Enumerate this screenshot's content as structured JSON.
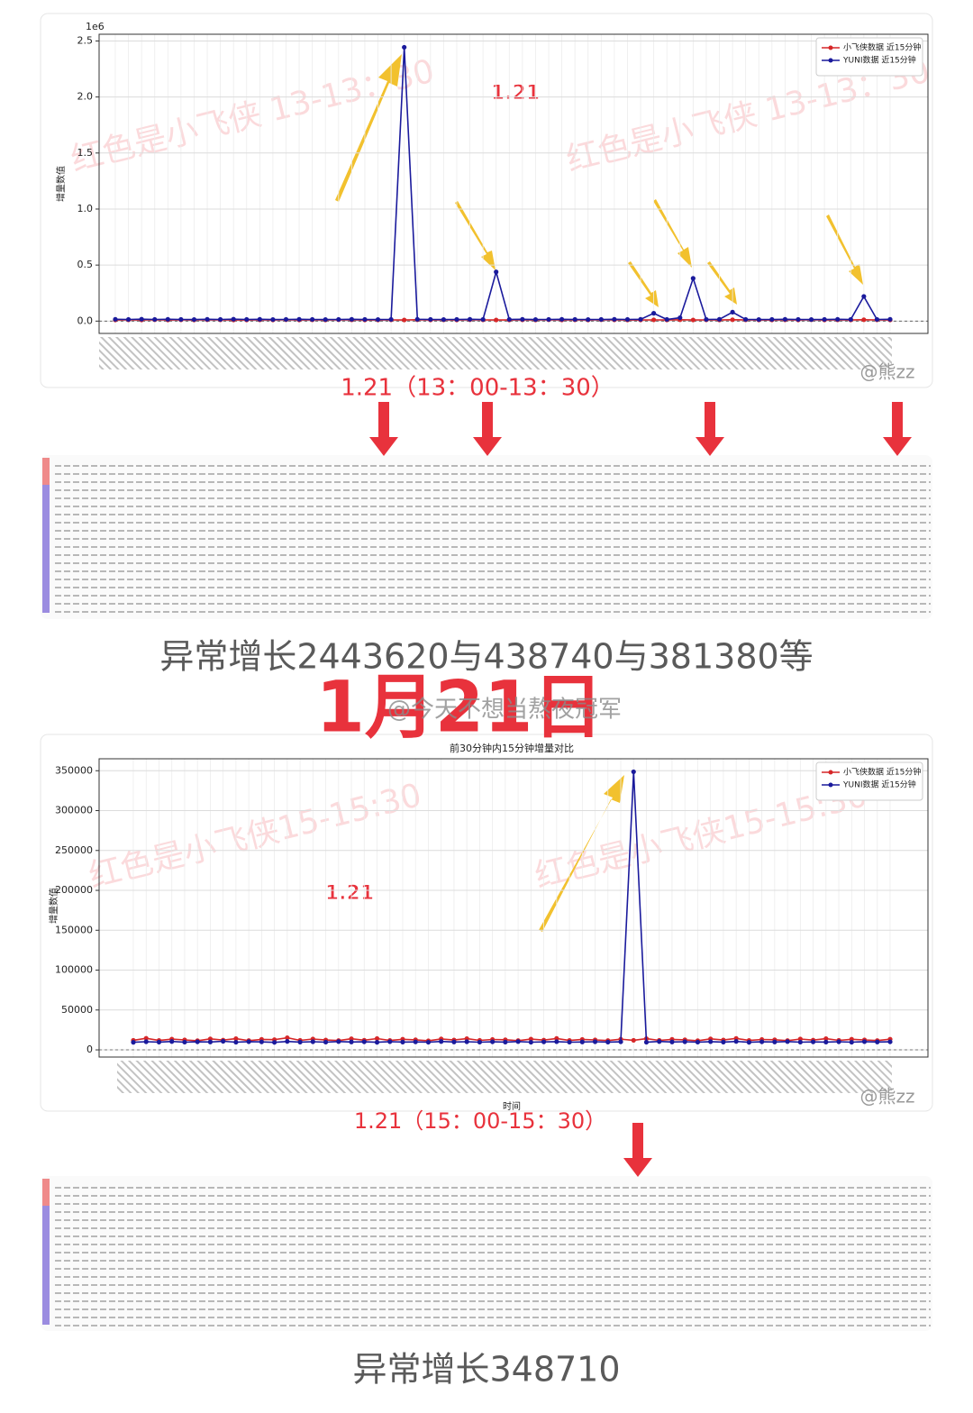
{
  "chart_data": [
    {
      "type": "line",
      "y_offset_label": "1e6",
      "ylabel": "增量数值",
      "annotation": "1.21",
      "watermark": "红色是小飞侠 13-13：30",
      "categories": [
        null,
        null,
        null,
        null,
        null,
        null,
        null,
        null,
        null,
        null,
        null,
        null,
        null,
        null,
        null,
        null,
        null,
        null,
        null,
        null,
        null,
        null,
        null,
        null,
        null,
        null,
        null,
        null,
        null,
        null,
        null,
        null,
        null,
        null,
        null,
        null,
        null,
        null,
        null,
        null,
        null,
        null,
        null,
        null,
        null,
        null,
        null,
        null,
        null,
        null,
        null,
        null,
        null,
        null,
        null,
        null,
        null,
        null,
        null,
        null
      ],
      "series": [
        {
          "name": "小飞侠数据 近15分钟",
          "color": "#d62728",
          "values": [
            0.01,
            0.011,
            0.01,
            0.012,
            0.01,
            0.011,
            0.01,
            0.012,
            0.011,
            0.01,
            0.01,
            0.011,
            0.01,
            0.012,
            0.01,
            0.011,
            0.01,
            0.012,
            0.011,
            0.01,
            0.01,
            0.011,
            0.01,
            0.012,
            0.01,
            0.011,
            0.01,
            0.012,
            0.011,
            0.01,
            0.01,
            0.011,
            0.01,
            0.012,
            0.01,
            0.011,
            0.01,
            0.012,
            0.011,
            0.01,
            0.01,
            0.011,
            0.01,
            0.012,
            0.01,
            0.011,
            0.01,
            0.012,
            0.011,
            0.01,
            0.01,
            0.011,
            0.01,
            0.012,
            0.01,
            0.011,
            0.01,
            0.012,
            0.011,
            0.01
          ]
        },
        {
          "name": "YUNI数据 近15分钟",
          "color": "#1a1a9c",
          "values": [
            0.016,
            0.015,
            0.017,
            0.015,
            0.016,
            0.015,
            0.014,
            0.016,
            0.015,
            0.017,
            0.015,
            0.016,
            0.014,
            0.015,
            0.016,
            0.015,
            0.014,
            0.015,
            0.016,
            0.015,
            0.014,
            0.015,
            2.44362,
            0.016,
            0.015,
            0.014,
            0.015,
            0.016,
            0.015,
            0.43874,
            0.015,
            0.016,
            0.014,
            0.015,
            0.016,
            0.015,
            0.014,
            0.015,
            0.016,
            0.015,
            0.016,
            0.07,
            0.015,
            0.03,
            0.38138,
            0.015,
            0.016,
            0.08,
            0.015,
            0.014,
            0.015,
            0.016,
            0.015,
            0.014,
            0.015,
            0.016,
            0.015,
            0.22,
            0.015,
            0.016
          ]
        }
      ],
      "ylim": [
        -0.11,
        2.56
      ],
      "yticks": [
        {
          "value": 0,
          "label": "0.0"
        },
        {
          "value": 0.5,
          "label": "0.5"
        },
        {
          "value": 1,
          "label": "1.0"
        },
        {
          "value": 1.5,
          "label": "1.5"
        },
        {
          "value": 2,
          "label": "2.0"
        },
        {
          "value": 2.5,
          "label": "2.5"
        }
      ],
      "grid": true,
      "legend": "upper right"
    },
    {
      "type": "line",
      "title": "前30分钟内15分钟增量对比",
      "xlabel": "时间",
      "ylabel": "增量数值",
      "annotation": "1.21",
      "watermark": "红色是小飞侠15-15:30",
      "categories": [
        null,
        null,
        null,
        null,
        null,
        null,
        null,
        null,
        null,
        null,
        null,
        null,
        null,
        null,
        null,
        null,
        null,
        null,
        null,
        null,
        null,
        null,
        null,
        null,
        null,
        null,
        null,
        null,
        null,
        null,
        null,
        null,
        null,
        null,
        null,
        null,
        null,
        null,
        null,
        null,
        null,
        null,
        null,
        null,
        null,
        null,
        null,
        null,
        null,
        null,
        null,
        null,
        null,
        null,
        null,
        null,
        null,
        null,
        null,
        null
      ],
      "series": [
        {
          "name": "小飞侠数据 近15分钟",
          "color": "#d62728",
          "values": [
            12000,
            14500,
            11800,
            13500,
            12500,
            11500,
            13800,
            12200,
            14000,
            11600,
            13200,
            12800,
            15200,
            11900,
            13600,
            12400,
            11700,
            13900,
            12100,
            14200,
            11800,
            13300,
            12600,
            11400,
            13700,
            12300,
            14100,
            11900,
            13000,
            12700,
            11600,
            13500,
            12200,
            14300,
            11800,
            13100,
            12500,
            11700,
            13400,
            12000,
            14000,
            11900,
            13200,
            12600,
            11500,
            13800,
            12300,
            14400,
            11800,
            13000,
            12700,
            11600,
            13600,
            12200,
            14100,
            11900,
            13300,
            12500,
            11700,
            13400
          ]
        },
        {
          "name": "YUNI数据 近15分钟",
          "color": "#1a1a9c",
          "values": [
            9500,
            10200,
            9800,
            10500,
            9700,
            10100,
            9900,
            10800,
            9600,
            10300,
            10000,
            9400,
            10600,
            9800,
            10200,
            9700,
            10400,
            9900,
            10100,
            9500,
            10300,
            9800,
            10000,
            9600,
            10500,
            9900,
            10200,
            9700,
            10100,
            9800,
            10400,
            9600,
            10000,
            10300,
            9700,
            9900,
            10200,
            9800,
            10100,
            348710,
            9600,
            10500,
            9900,
            10200,
            9700,
            10300,
            9800,
            10600,
            9500,
            10100,
            9900,
            10400,
            9700,
            10000,
            9800,
            10200,
            9600,
            10300,
            9900,
            10100
          ]
        }
      ],
      "ylim": [
        -9000,
        365000
      ],
      "yticks": [
        0,
        50000,
        100000,
        150000,
        200000,
        250000,
        300000,
        350000
      ],
      "grid": true,
      "legend": "upper right"
    }
  ],
  "captions": {
    "period_1": "1.21（13：00-13：30）",
    "summary_1": "异常增长2443620与438740与381380等",
    "date": "1月21日",
    "period_2": "1.21（15：00-15：30）",
    "summary_2": "异常增长348710"
  },
  "watermarks": {
    "weibo_user": "@今天不想当熬夜冠军",
    "weibo_chart": "@熊zz"
  }
}
